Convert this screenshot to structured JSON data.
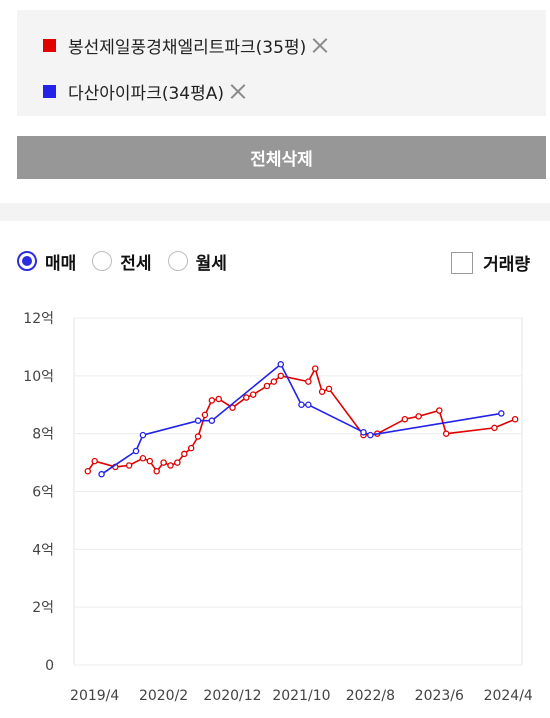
{
  "compare": {
    "items": [
      {
        "name": "봉선제일풍경채엘리트파크(35평)",
        "color": "#e00000"
      },
      {
        "name": "다산아이파크(34평A)",
        "color": "#2222e8"
      }
    ],
    "delete_all_label": "전체삭제"
  },
  "filters": {
    "trade_types": [
      {
        "label": "매매",
        "selected": true
      },
      {
        "label": "전세",
        "selected": false
      },
      {
        "label": "월세",
        "selected": false
      }
    ],
    "volume_label": "거래량",
    "volume_checked": false
  },
  "chart_data": {
    "type": "line",
    "title": "",
    "xlabel": "",
    "ylabel": "",
    "x_ticks": [
      "2019/4",
      "2020/2",
      "2020/12",
      "2021/10",
      "2022/8",
      "2023/6",
      "2024/4"
    ],
    "y_ticks": [
      "0",
      "2억",
      "4억",
      "6억",
      "8억",
      "10억",
      "12억"
    ],
    "ylim": [
      0,
      12
    ],
    "xlim": [
      "2019/1",
      "2024/6"
    ],
    "grid": true,
    "series": [
      {
        "name": "봉선제일풍경채엘리트파크(35평)",
        "color": "#e00000",
        "points": [
          [
            "2019/3",
            6.7
          ],
          [
            "2019/4",
            7.05
          ],
          [
            "2019/7",
            6.85
          ],
          [
            "2019/9",
            6.9
          ],
          [
            "2019/11",
            7.15
          ],
          [
            "2019/12",
            7.05
          ],
          [
            "2020/1",
            6.7
          ],
          [
            "2020/2",
            7.0
          ],
          [
            "2020/3",
            6.9
          ],
          [
            "2020/4",
            7.0
          ],
          [
            "2020/5",
            7.3
          ],
          [
            "2020/6",
            7.5
          ],
          [
            "2020/7",
            7.9
          ],
          [
            "2020/8",
            8.65
          ],
          [
            "2020/9",
            9.15
          ],
          [
            "2020/10",
            9.2
          ],
          [
            "2020/12",
            8.9
          ],
          [
            "2021/2",
            9.25
          ],
          [
            "2021/3",
            9.35
          ],
          [
            "2021/5",
            9.65
          ],
          [
            "2021/6",
            9.8
          ],
          [
            "2021/7",
            10.0
          ],
          [
            "2021/11",
            9.8
          ],
          [
            "2021/12",
            10.25
          ],
          [
            "2022/1",
            9.45
          ],
          [
            "2022/2",
            9.55
          ],
          [
            "2022/7",
            7.95
          ],
          [
            "2022/9",
            8.0
          ],
          [
            "2023/1",
            8.5
          ],
          [
            "2023/3",
            8.6
          ],
          [
            "2023/6",
            8.8
          ],
          [
            "2023/7",
            8.0
          ],
          [
            "2024/2",
            8.2
          ],
          [
            "2024/5",
            8.5
          ]
        ]
      },
      {
        "name": "다산아이파크(34평A)",
        "color": "#2222e8",
        "points": [
          [
            "2019/5",
            6.6
          ],
          [
            "2019/10",
            7.4
          ],
          [
            "2019/11",
            7.95
          ],
          [
            "2020/7",
            8.45
          ],
          [
            "2020/9",
            8.45
          ],
          [
            "2021/7",
            10.4
          ],
          [
            "2021/10",
            9.0
          ],
          [
            "2021/11",
            9.0
          ],
          [
            "2022/7",
            8.05
          ],
          [
            "2022/8",
            7.95
          ],
          [
            "2024/3",
            8.7
          ]
        ]
      }
    ]
  }
}
